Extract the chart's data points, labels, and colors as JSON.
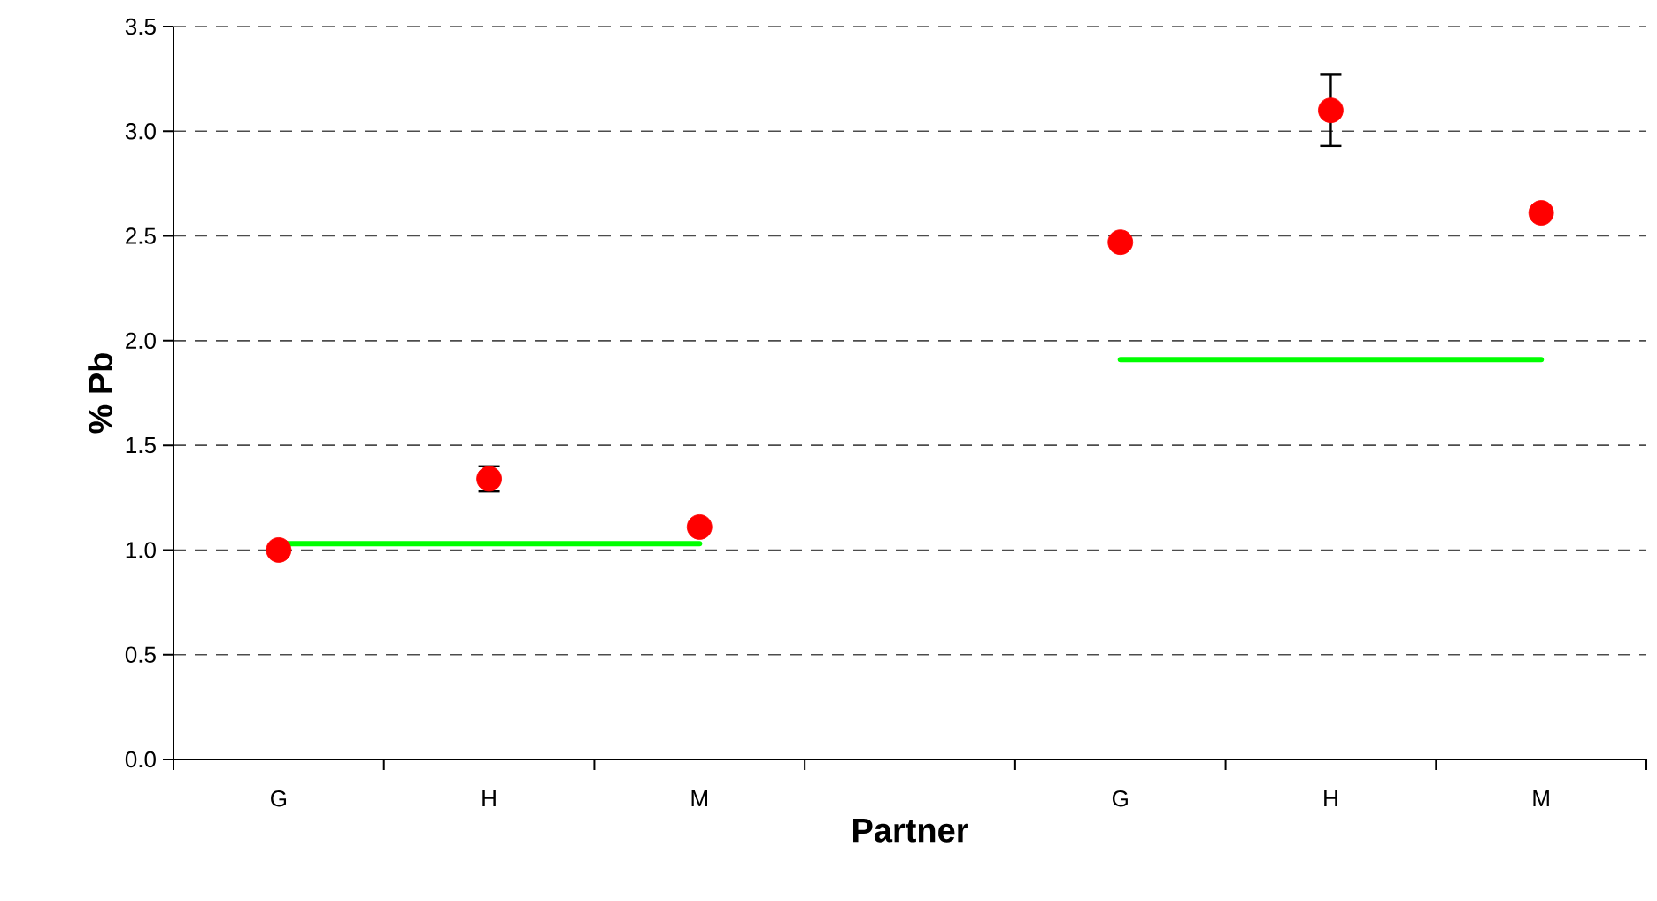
{
  "chart_data": {
    "type": "scatter",
    "xlabel": "Partner",
    "ylabel": "% Pb",
    "categories": [
      "G",
      "H",
      "M",
      null,
      "G",
      "H",
      "M"
    ],
    "series": [
      {
        "type": "line",
        "color": "#00ff00",
        "marker": "none",
        "values": [
          1.03,
          1.03,
          1.03,
          null,
          null,
          null,
          null
        ]
      },
      {
        "type": "line",
        "color": "#00ff00",
        "marker": "none",
        "values": [
          null,
          null,
          null,
          null,
          1.91,
          1.91,
          1.91
        ]
      },
      {
        "color": "#ff0000",
        "marker": "circle",
        "values": [
          1.0,
          1.34,
          1.11,
          null,
          2.47,
          3.1,
          2.61
        ],
        "errors": [
          null,
          [
            1.28,
            1.4
          ],
          null,
          null,
          null,
          [
            2.93,
            3.27
          ],
          null
        ]
      }
    ],
    "ylim": [
      0,
      3.5
    ],
    "yticks": [
      {
        "value": 0,
        "label": "0.0"
      },
      {
        "value": 0.5,
        "label": "0.5"
      },
      {
        "value": 1,
        "label": "1.0"
      },
      {
        "value": 1.5,
        "label": "1.5"
      },
      {
        "value": 2,
        "label": "2.0"
      },
      {
        "value": 2.5,
        "label": "2.5"
      },
      {
        "value": 3,
        "label": "3.0"
      },
      {
        "value": 3.5,
        "label": "3.5"
      }
    ],
    "grid": "y",
    "line_style": "solid"
  }
}
